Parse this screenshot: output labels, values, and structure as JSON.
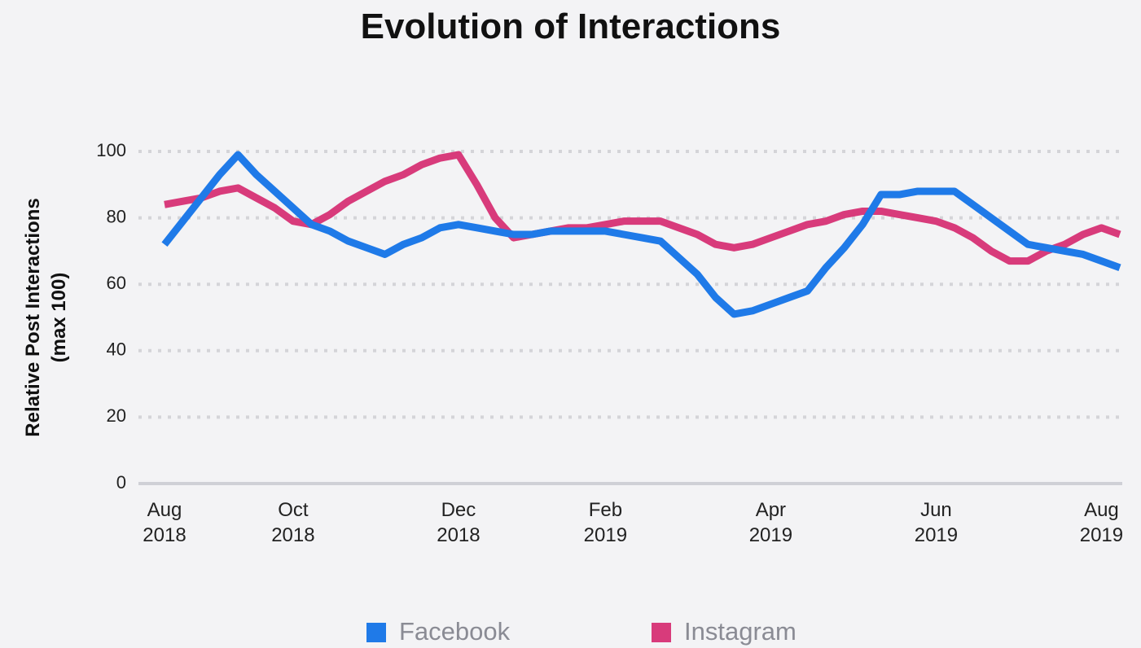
{
  "chart_data": {
    "type": "line",
    "title": "Evolution of Interactions",
    "y_label": "Relative Post Interactions (max 100)",
    "categories": [
      "Aug 2018",
      null,
      null,
      null,
      null,
      null,
      null,
      "Oct 2018",
      null,
      null,
      null,
      null,
      null,
      null,
      null,
      null,
      "Dec 2018",
      null,
      null,
      null,
      null,
      null,
      null,
      null,
      "Feb 2019",
      null,
      null,
      null,
      null,
      null,
      null,
      null,
      null,
      "Apr 2019",
      null,
      null,
      null,
      null,
      null,
      null,
      null,
      null,
      "Jun 2019",
      null,
      null,
      null,
      null,
      null,
      null,
      null,
      null,
      "Aug 2019",
      null
    ],
    "series": [
      {
        "name": "Facebook",
        "color": "#1f7ae8",
        "values": [
          72,
          79,
          86,
          93,
          99,
          93,
          88,
          83,
          78,
          76,
          73,
          71,
          69,
          72,
          74,
          77,
          78,
          77,
          76,
          75,
          75,
          76,
          76,
          76,
          76,
          75,
          74,
          73,
          68,
          63,
          56,
          51,
          52,
          54,
          56,
          58,
          65,
          71,
          78,
          87,
          87,
          88,
          88,
          88,
          84,
          80,
          76,
          72,
          71,
          70,
          69,
          67,
          65
        ]
      },
      {
        "name": "Instagram",
        "color": "#d83b7b",
        "values": [
          84,
          85,
          86,
          88,
          89,
          86,
          83,
          79,
          78,
          81,
          85,
          88,
          91,
          93,
          96,
          98,
          99,
          90,
          80,
          74,
          75,
          76,
          77,
          77,
          78,
          79,
          79,
          79,
          77,
          75,
          72,
          71,
          72,
          74,
          76,
          78,
          79,
          81,
          82,
          82,
          81,
          80,
          79,
          77,
          74,
          70,
          67,
          67,
          70,
          72,
          75,
          77,
          75
        ]
      }
    ],
    "ylim": [
      0,
      100
    ],
    "yticks": [
      0,
      20,
      40,
      60,
      80,
      100
    ],
    "grid": true,
    "legend": "bottom"
  }
}
